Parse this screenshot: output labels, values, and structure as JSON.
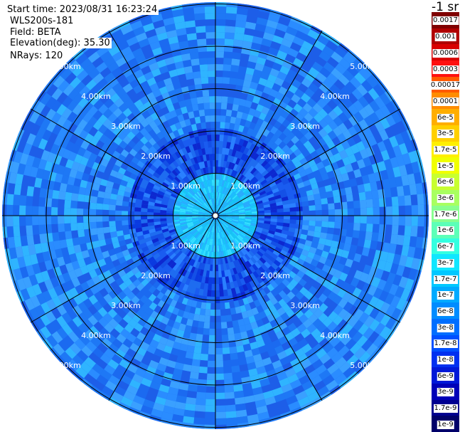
{
  "header": {
    "start_time": "Start time: 2023/08/31 16:23:24",
    "instrument": "WLS200s-181",
    "field": "Field: BETA",
    "elevation": "Elevation(deg): 35.30",
    "nrays": "NRays: 120"
  },
  "units": "-1 sr",
  "colors": {
    "grid": "#000000",
    "range_label": "#ffffff"
  },
  "colorbar": {
    "labels": [
      "0.0017",
      "0.001",
      "0.0006",
      "0.0003",
      "0.00017",
      "0.0001",
      "6e-5",
      "3e-5",
      "1.7e-5",
      "1e-5",
      "6e-6",
      "3e-6",
      "1.7e-6",
      "1e-6",
      "6e-7",
      "3e-7",
      "1.7e-7",
      "1e-7",
      "6e-8",
      "3e-8",
      "1.7e-8",
      "1e-8",
      "6e-9",
      "3e-9",
      "1.7e-9",
      "1e-9"
    ],
    "colors": [
      "#800000",
      "#b00000",
      "#d80000",
      "#ff1010",
      "#ff5a00",
      "#ff8c00",
      "#ffae00",
      "#ffd000",
      "#ffef00",
      "#f0ff00",
      "#c8ff30",
      "#a8ff60",
      "#88ff90",
      "#5cffb8",
      "#33ffe0",
      "#10e6ff",
      "#00c8ff",
      "#00aaff",
      "#008cff",
      "#006eff",
      "#0050ff",
      "#0030f0",
      "#0018d8",
      "#0000b8",
      "#000090",
      "#00006a"
    ]
  },
  "chart_data": {
    "type": "heatmap",
    "projection": "polar (PPI scan)",
    "field": "BETA",
    "elevation_deg": 35.3,
    "n_rays": 120,
    "range_rings_km": [
      1.0,
      2.0,
      3.0,
      4.0,
      5.0
    ],
    "ring_labels": [
      "1.00km",
      "2.00km",
      "3.00km",
      "4.00km",
      "5.00km"
    ],
    "spoke_angles_deg": [
      0,
      30,
      60,
      90,
      120,
      150,
      180,
      210,
      240,
      270,
      300,
      330
    ],
    "dominant_range_by_distance": [
      {
        "range_km": "0-1",
        "approx_value": "1e-7"
      },
      {
        "range_km": "1-2",
        "approx_value": "1e-8"
      },
      {
        "range_km": "2-5",
        "approx_value": "3e-8"
      }
    ]
  }
}
